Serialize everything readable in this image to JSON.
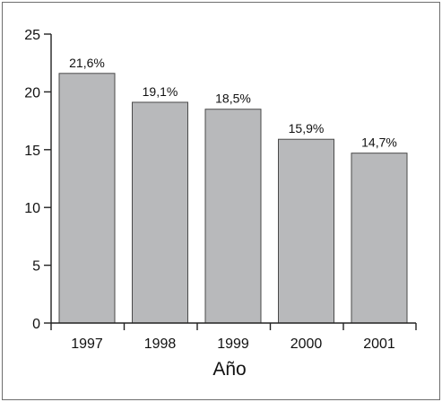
{
  "chart_data": {
    "type": "bar",
    "title": "",
    "xlabel": "Año",
    "ylabel": "",
    "categories": [
      "1997",
      "1998",
      "1999",
      "2000",
      "2001"
    ],
    "values": [
      21.6,
      19.1,
      18.5,
      15.9,
      14.7
    ],
    "data_labels": [
      "21,6%",
      "19,1%",
      "18,5%",
      "15,9%",
      "14,7%"
    ],
    "ylim": [
      0,
      25
    ],
    "yticks": [
      0,
      5,
      10,
      15,
      20,
      25
    ],
    "grid": false,
    "bar_color": "#b8b9bb",
    "bar_edge_color": "#4a4a4a",
    "axis_color": "#222222"
  }
}
